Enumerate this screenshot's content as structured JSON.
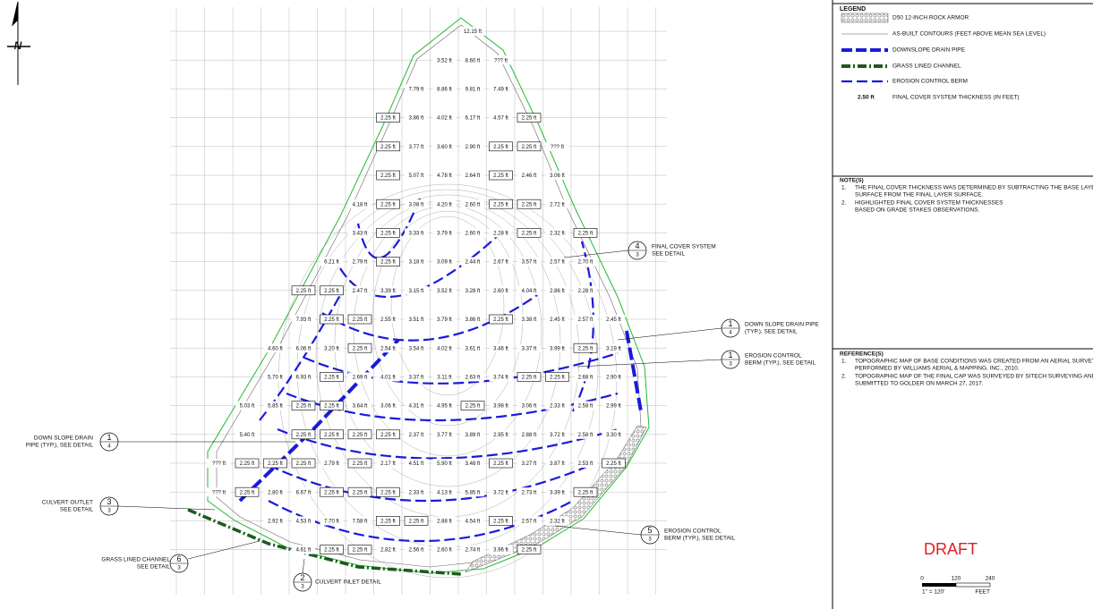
{
  "north_arrow": "N",
  "thickness_grid": {
    "rows": [
      [
        null,
        null,
        null,
        null,
        null,
        null,
        null,
        null,
        null,
        null,
        "12.15 ft",
        null,
        null,
        null,
        null,
        null
      ],
      [
        null,
        null,
        null,
        null,
        null,
        null,
        null,
        null,
        null,
        "3.52 ft",
        "8.60 ft",
        "??? ft",
        null,
        null,
        null,
        null
      ],
      [
        null,
        null,
        null,
        null,
        null,
        null,
        null,
        null,
        "7.79 ft",
        "8.86 ft",
        "9.81 ft",
        "7.49 ft",
        null,
        null,
        null,
        null
      ],
      [
        null,
        null,
        null,
        null,
        null,
        null,
        null,
        {
          "text": "2.25 ft",
          "boxed": true
        },
        "3.86 ft",
        "4.02 ft",
        "6.17 ft",
        "4.57 ft",
        {
          "text": "2.25 ft",
          "boxed": true
        },
        null,
        null,
        null
      ],
      [
        null,
        null,
        null,
        null,
        null,
        null,
        null,
        {
          "text": "2.25 ft",
          "boxed": true
        },
        "3.77 ft",
        "3.60 ft",
        "2.90 ft",
        {
          "text": "2.25 ft",
          "boxed": true
        },
        {
          "text": "2.25 ft",
          "boxed": true
        },
        "??? ft",
        null,
        null
      ],
      [
        null,
        null,
        null,
        null,
        null,
        null,
        null,
        {
          "text": "2.25 ft",
          "boxed": true
        },
        "5.07 ft",
        "4.78 ft",
        "2.64 ft",
        {
          "text": "2.25 ft",
          "boxed": true
        },
        "2.46 ft",
        "3.06 ft",
        null,
        null
      ],
      [
        null,
        null,
        null,
        null,
        null,
        null,
        "4.18 ft",
        {
          "text": "2.25 ft",
          "boxed": true
        },
        "3.08 ft",
        "4.20 ft",
        "2.60 ft",
        {
          "text": "2.25 ft",
          "boxed": true
        },
        {
          "text": "2.25 ft",
          "boxed": true
        },
        "2.72 ft",
        null,
        null
      ],
      [
        null,
        null,
        null,
        null,
        null,
        null,
        "3.43 ft",
        {
          "text": "2.25 ft",
          "boxed": true
        },
        "3.33 ft",
        "3.79 ft",
        "2.60 ft",
        "2.28 ft",
        {
          "text": "2.25 ft",
          "boxed": true
        },
        "2.32 ft",
        {
          "text": "2.25 ft",
          "boxed": true
        },
        null
      ],
      [
        null,
        null,
        null,
        null,
        null,
        "6.21 ft",
        "2.79 ft",
        {
          "text": "2.25 ft",
          "boxed": true
        },
        "3.18 ft",
        "3.09 ft",
        "2.44 ft",
        "2.67 ft",
        "3.57 ft",
        "2.57 ft",
        "2.70 ft",
        null
      ],
      [
        null,
        null,
        null,
        null,
        {
          "text": "2.25 ft",
          "boxed": true
        },
        {
          "text": "2.25 ft",
          "boxed": true
        },
        "2.47 ft",
        "3.39 ft",
        "3.15 ft",
        "3.52 ft",
        "3.28 ft",
        "2.60 ft",
        "4.04 ft",
        "2.86 ft",
        "2.28 ft",
        null
      ],
      [
        null,
        null,
        null,
        null,
        "7.93 ft",
        {
          "text": "2.25 ft",
          "boxed": true
        },
        {
          "text": "2.25 ft",
          "boxed": true
        },
        "2.55 ft",
        "3.51 ft",
        "3.79 ft",
        "3.86 ft",
        {
          "text": "2.25 ft",
          "boxed": true
        },
        "3.38 ft",
        "2.45 ft",
        "2.57 ft",
        "2.45 ft"
      ],
      [
        null,
        null,
        null,
        "4.60 ft",
        "6.06 ft",
        "3.20 ft",
        {
          "text": "2.25 ft",
          "boxed": true
        },
        "2.54 ft",
        "3.54 ft",
        "4.02 ft",
        "3.61 ft",
        "3.46 ft",
        "3.37 ft",
        "3.99 ft",
        {
          "text": "2.25 ft",
          "boxed": true
        },
        "3.19 ft"
      ],
      [
        null,
        null,
        null,
        "5.70 ft",
        "6.93 ft",
        {
          "text": "2.25 ft",
          "boxed": true
        },
        "2.69 ft",
        "4.01 ft",
        "3.37 ft",
        "3.11 ft",
        "2.63 ft",
        "3.74 ft",
        {
          "text": "2.25 ft",
          "boxed": true
        },
        {
          "text": "2.25 ft",
          "boxed": true
        },
        "2.68 ft",
        "2.90 ft"
      ],
      [
        null,
        null,
        "5.03 ft",
        "5.85 ft",
        {
          "text": "2.25 ft",
          "boxed": true
        },
        {
          "text": "2.25 ft",
          "boxed": true
        },
        "3.64 ft",
        "3.06 ft",
        "4.31 ft",
        "4.95 ft",
        {
          "text": "2.25 ft",
          "boxed": true
        },
        "3.98 ft",
        "3.06 ft",
        "2.33 ft",
        "2.58 ft",
        "2.99 ft"
      ],
      [
        null,
        null,
        "5.40 ft",
        null,
        {
          "text": "2.25 ft",
          "boxed": true
        },
        {
          "text": "2.25 ft",
          "boxed": true
        },
        {
          "text": "2.25 ft",
          "boxed": true
        },
        {
          "text": "2.25 ft",
          "boxed": true
        },
        "2.37 ft",
        "3.77 ft",
        "3.89 ft",
        "2.95 ft",
        "2.88 ft",
        "3.72 ft",
        "2.58 ft",
        "3.30 ft"
      ],
      [
        null,
        "??? ft",
        {
          "text": "2.25 ft",
          "boxed": true
        },
        {
          "text": "2.25 ft",
          "boxed": true
        },
        {
          "text": "2.25 ft",
          "boxed": true
        },
        "2.79 ft",
        {
          "text": "2.25 ft",
          "boxed": true
        },
        "2.17 ft",
        "4.51 ft",
        "5.90 ft",
        "3.48 ft",
        {
          "text": "2.25 ft",
          "boxed": true
        },
        "3.27 ft",
        "3.87 ft",
        "2.53 ft",
        {
          "text": "2.25 ft",
          "boxed": true
        }
      ],
      [
        null,
        "??? ft",
        {
          "text": "2.25 ft",
          "boxed": true
        },
        "2.80 ft",
        "6.67 ft",
        {
          "text": "2.25 ft",
          "boxed": true
        },
        {
          "text": "2.25 ft",
          "boxed": true
        },
        {
          "text": "2.25 ft",
          "boxed": true
        },
        "2.33 ft",
        "4.13 ft",
        "5.85 ft",
        "3.72 ft",
        "2.73 ft",
        "3.39 ft",
        {
          "text": "2.25 ft",
          "boxed": true
        },
        null
      ],
      [
        null,
        null,
        null,
        "2.92 ft",
        "4.53 ft",
        "7.70 ft",
        "7.58 ft",
        {
          "text": "2.25 ft",
          "boxed": true
        },
        {
          "text": "2.25 ft",
          "boxed": true
        },
        "2.88 ft",
        "4.54 ft",
        {
          "text": "2.25 ft",
          "boxed": true
        },
        "2.57 ft",
        "2.32 ft",
        null,
        null
      ],
      [
        null,
        null,
        null,
        null,
        "4.61 ft",
        {
          "text": "2.25 ft",
          "boxed": true
        },
        {
          "text": "2.25 ft",
          "boxed": true
        },
        "2.82 ft",
        "2.56 ft",
        "2.60 ft",
        "2.74 ft",
        "3.96 ft",
        {
          "text": "2.25 ft",
          "boxed": true
        },
        null,
        null,
        null
      ]
    ]
  },
  "callouts": [
    {
      "number": "4",
      "sheet": "3",
      "lines": [
        "FINAL COVER SYSTEM",
        "SEE DETAIL"
      ]
    },
    {
      "number": "1",
      "sheet": "4",
      "lines": [
        "DOWN SLOPE DRAIN PIPE",
        "(TYP.), SEE DETAIL"
      ]
    },
    {
      "number": "1",
      "sheet": "3",
      "lines": [
        "EROSION CONTROL",
        "BERM (TYP.), SEE DETAIL"
      ]
    },
    {
      "number": "5",
      "sheet": "3",
      "lines": [
        "EROSION CONTROL",
        "BERM (TYP.), SEE DETAIL"
      ]
    },
    {
      "number": "1",
      "sheet": "4",
      "lines": [
        "DOWN SLOPE DRAIN",
        "PIPE (TYP.), SEE DETAIL"
      ]
    },
    {
      "number": "3",
      "sheet": "3",
      "lines": [
        "CULVERT OUTLET",
        "SEE DETAIL"
      ]
    },
    {
      "number": "6",
      "sheet": "3",
      "lines": [
        "GRASS LINED CHANNEL",
        "SEE DETAIL"
      ]
    },
    {
      "number": "2",
      "sheet": "3",
      "lines": [
        "CULVERT INLET DETAIL"
      ]
    }
  ],
  "legend": {
    "title": "LEGEND",
    "items": [
      "D50 12-INCH ROCK ARMOR",
      "AS-BUILT CONTOURS (FEET ABOVE MEAN SEA LEVEL)",
      "DOWNSLOPE DRAIN PIPE",
      "GRASS LINED CHANNEL",
      "EROSION CONTROL BERM"
    ],
    "thickness_sample": "2.50 ft",
    "thickness_label": "FINAL COVER SYSTEM THICKNESS (IN FEET)"
  },
  "notes": {
    "title": "NOTE(S)",
    "items": [
      {
        "number": "1.",
        "lines": [
          "THE FINAL COVER THICKNESS WAS DETERMINED BY SUBTRACTING THE BASE LAYER",
          "SURFACE FROM THE FINAL LAYER SURFACE."
        ]
      },
      {
        "number": "2.",
        "lines": [
          "HIGHLIGHTED FINAL COVER SYSTEM THICKNESSES",
          "BASED ON GRADE STAKES OBSERVATIONS."
        ]
      }
    ]
  },
  "references": {
    "title": "REFERENCE(S)",
    "items": [
      {
        "number": "1.",
        "lines": [
          "TOPOGRAPHIC MAP OF BASE CONDITIONS WAS CREATED FROM AN AERIAL SURVEY",
          "PERFORMED BY WILLIAMS AERIAL & MAPPING, INC., 2010."
        ]
      },
      {
        "number": "2.",
        "lines": [
          "TOPOGRAPHIC MAP OF THE FINAL CAP WAS SURVEYED BY SITECH SURVEYING AND",
          "SUBMITTED TO GOLDER ON MARCH 27, 2017."
        ]
      }
    ]
  },
  "stamp": "DRAFT",
  "scale_bar": {
    "ticks": [
      "0",
      "120",
      "240"
    ],
    "ratio": "1\" = 120'",
    "unit": "FEET"
  }
}
